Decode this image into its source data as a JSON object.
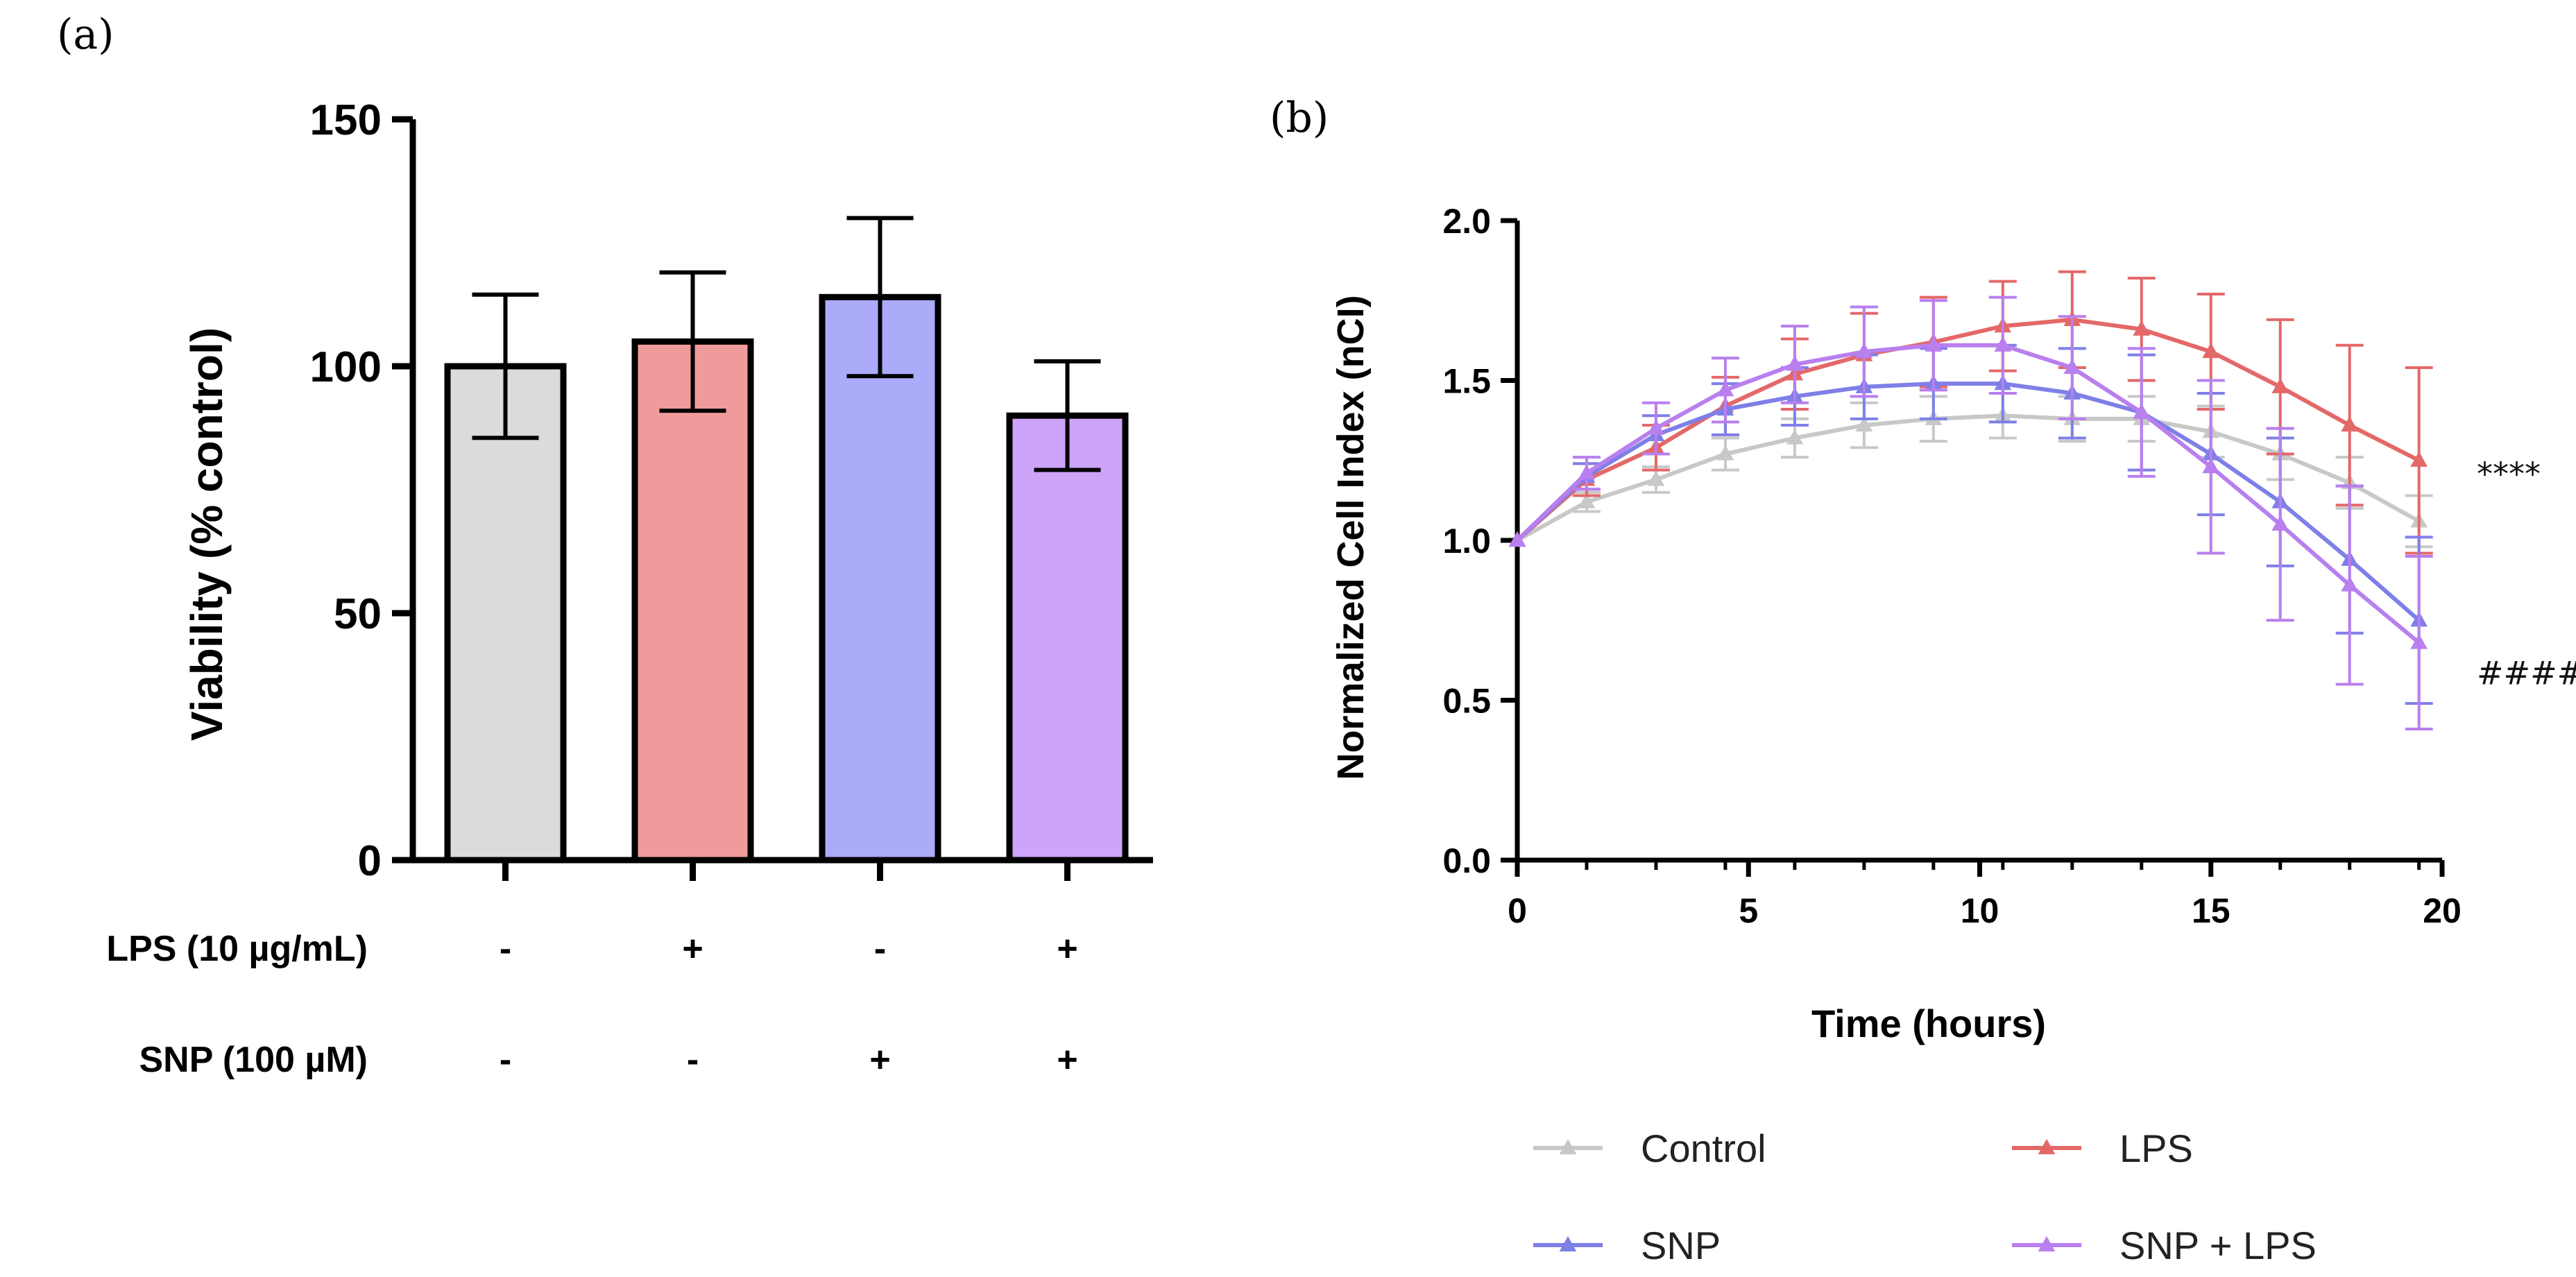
{
  "panels": {
    "a": "(a)",
    "b": "(b)"
  },
  "chart_data": [
    {
      "type": "bar",
      "title": "",
      "ylabel": "Viability (% control)",
      "xlabel": "",
      "ylim": [
        0,
        150
      ],
      "yticks": [
        "0",
        "50",
        "100",
        "150"
      ],
      "categories": [
        "Control",
        "LPS",
        "SNP",
        "SNP + LPS"
      ],
      "values": [
        100,
        105,
        114,
        90
      ],
      "errors": [
        14.5,
        14,
        16,
        11
      ],
      "colors": [
        "#dbdbdb",
        "#f09b9b",
        "#ababfa",
        "#cda4f7"
      ],
      "treatment_rows": [
        {
          "label": "LPS (10 µg/mL)",
          "signs": [
            "-",
            "+",
            "-",
            "+"
          ]
        },
        {
          "label": "SNP (100 µM)",
          "signs": [
            "-",
            "-",
            "+",
            "+"
          ]
        }
      ]
    },
    {
      "type": "line",
      "title": "",
      "xlabel": "Time (hours)",
      "ylabel": "Normalized Cell Index (nCI)",
      "xlim": [
        0,
        20
      ],
      "ylim": [
        0,
        2.0
      ],
      "xticks": [
        "0",
        "5",
        "10",
        "15",
        "20"
      ],
      "yticks": [
        "0.0",
        "0.5",
        "1.0",
        "1.5",
        "2.0"
      ],
      "x": [
        0,
        1.5,
        3,
        4.5,
        6,
        7.5,
        9,
        10.5,
        12,
        13.5,
        15,
        16.5,
        18,
        19.5
      ],
      "series": [
        {
          "name": "Control",
          "color": "#c8c8c8",
          "values": [
            1.0,
            1.12,
            1.19,
            1.27,
            1.32,
            1.36,
            1.38,
            1.39,
            1.38,
            1.38,
            1.34,
            1.27,
            1.18,
            1.06
          ],
          "errors": [
            0,
            0.03,
            0.04,
            0.05,
            0.06,
            0.07,
            0.07,
            0.07,
            0.07,
            0.07,
            0.08,
            0.08,
            0.08,
            0.08
          ]
        },
        {
          "name": "LPS",
          "color": "#e46868",
          "values": [
            1.0,
            1.19,
            1.29,
            1.42,
            1.52,
            1.58,
            1.62,
            1.67,
            1.69,
            1.66,
            1.59,
            1.48,
            1.36,
            1.25
          ],
          "errors": [
            0,
            0.05,
            0.07,
            0.09,
            0.11,
            0.13,
            0.14,
            0.14,
            0.15,
            0.16,
            0.18,
            0.21,
            0.25,
            0.29
          ]
        },
        {
          "name": "SNP",
          "color": "#7f7fe8",
          "values": [
            1.0,
            1.2,
            1.33,
            1.41,
            1.45,
            1.48,
            1.49,
            1.49,
            1.46,
            1.4,
            1.27,
            1.12,
            0.94,
            0.75
          ],
          "errors": [
            0,
            0.04,
            0.06,
            0.08,
            0.09,
            0.1,
            0.11,
            0.12,
            0.14,
            0.18,
            0.19,
            0.2,
            0.23,
            0.26
          ]
        },
        {
          "name": "SNP + LPS",
          "color": "#b97fee",
          "values": [
            1.0,
            1.21,
            1.35,
            1.47,
            1.55,
            1.59,
            1.61,
            1.61,
            1.54,
            1.4,
            1.23,
            1.05,
            0.86,
            0.68
          ],
          "errors": [
            0,
            0.05,
            0.08,
            0.1,
            0.12,
            0.14,
            0.14,
            0.15,
            0.16,
            0.2,
            0.27,
            0.3,
            0.31,
            0.27
          ]
        }
      ],
      "annotations": [
        {
          "text": "****",
          "series": "LPS"
        },
        {
          "text": "####",
          "series": "SNP + LPS"
        }
      ],
      "legend": {
        "position": "bottom",
        "entries": [
          "Control",
          "LPS",
          "SNP",
          "SNP + LPS"
        ]
      }
    }
  ]
}
